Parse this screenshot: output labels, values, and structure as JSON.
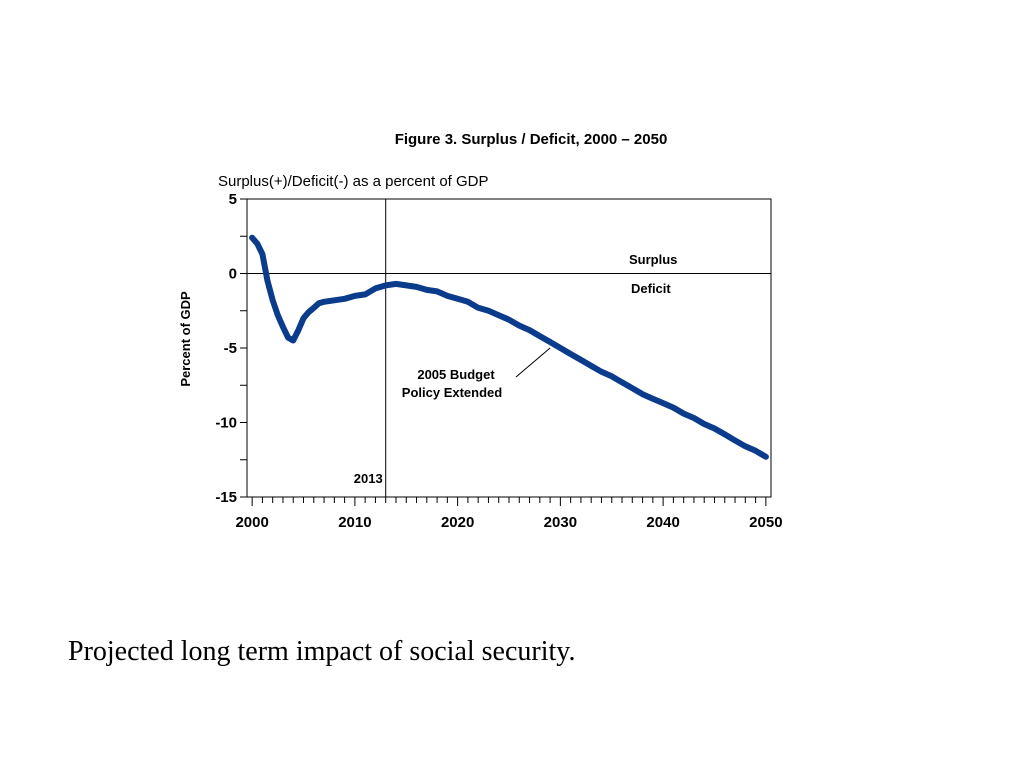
{
  "slide": {
    "caption": "Projected long term impact of social security."
  },
  "chart_data": {
    "type": "line",
    "title": "Figure 3.  Surplus / Deficit, 2000 – 2050",
    "subtitle": "Surplus(+)/Deficit(-) as a percent of GDP",
    "xlabel": "",
    "ylabel": "Percent of GDP",
    "xlim": [
      1999.5,
      2050.5
    ],
    "ylim": [
      -15,
      5
    ],
    "x_ticks": [
      2000,
      2010,
      2020,
      2030,
      2040,
      2050
    ],
    "y_ticks": [
      5,
      0,
      -5,
      -10,
      -15
    ],
    "grid": false,
    "line_color": "#0b3c8c",
    "reference_line": {
      "x": 2013,
      "label": "2013"
    },
    "zero_line_labels": {
      "above": "Surplus",
      "below": "Deficit"
    },
    "annotation": {
      "line1": "2005 Budget",
      "line2": "Policy Extended",
      "points_to": [
        2029,
        -5.0
      ]
    },
    "series": [
      {
        "name": "2005 Budget Policy Extended",
        "x": [
          2000,
          2000.5,
          2001,
          2001.5,
          2002,
          2002.5,
          2003,
          2003.5,
          2004,
          2004.5,
          2005,
          2005.5,
          2006,
          2006.5,
          2007,
          2008,
          2009,
          2010,
          2011,
          2012,
          2013,
          2014,
          2015,
          2016,
          2017,
          2018,
          2019,
          2020,
          2021,
          2022,
          2023,
          2024,
          2025,
          2026,
          2027,
          2028,
          2029,
          2030,
          2031,
          2032,
          2033,
          2034,
          2035,
          2036,
          2037,
          2038,
          2039,
          2040,
          2041,
          2042,
          2043,
          2044,
          2045,
          2046,
          2047,
          2048,
          2049,
          2050
        ],
        "y": [
          2.4,
          2.0,
          1.3,
          -0.5,
          -1.8,
          -2.8,
          -3.6,
          -4.3,
          -4.5,
          -3.8,
          -3.0,
          -2.6,
          -2.3,
          -2.0,
          -1.9,
          -1.8,
          -1.7,
          -1.5,
          -1.4,
          -1.0,
          -0.8,
          -0.7,
          -0.8,
          -0.9,
          -1.1,
          -1.2,
          -1.5,
          -1.7,
          -1.9,
          -2.3,
          -2.5,
          -2.8,
          -3.1,
          -3.5,
          -3.8,
          -4.2,
          -4.6,
          -5.0,
          -5.4,
          -5.8,
          -6.2,
          -6.6,
          -6.9,
          -7.3,
          -7.7,
          -8.1,
          -8.4,
          -8.7,
          -9.0,
          -9.4,
          -9.7,
          -10.1,
          -10.4,
          -10.8,
          -11.2,
          -11.6,
          -11.9,
          -12.3
        ]
      }
    ]
  }
}
